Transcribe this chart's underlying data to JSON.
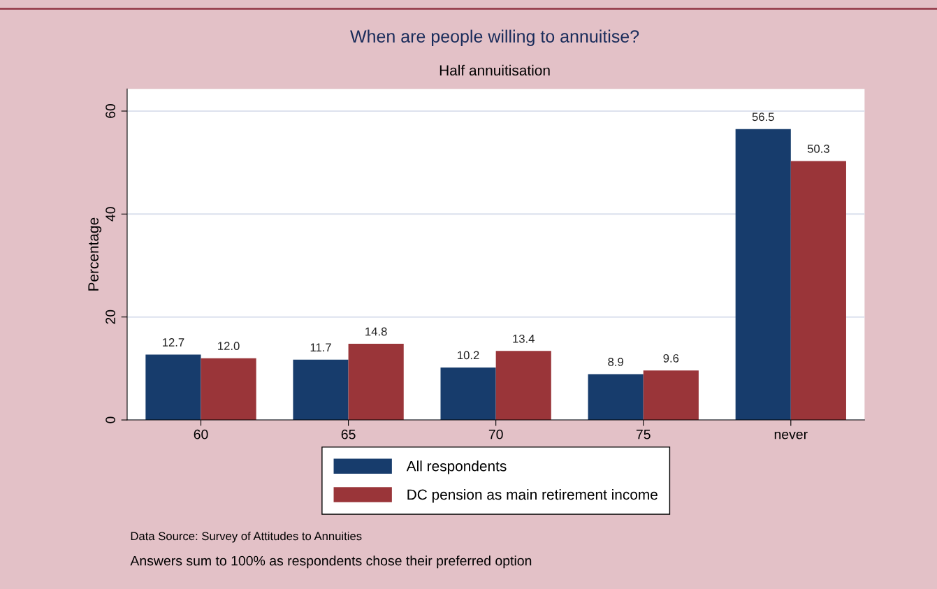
{
  "chart_data": {
    "type": "bar",
    "title": "When are people willing to annuitise?",
    "subtitle": "Half annuitisation",
    "ylabel": "Percentage",
    "categories": [
      "60",
      "65",
      "70",
      "75",
      "never"
    ],
    "series": [
      {
        "name": "All respondents",
        "color": "#173c6c",
        "values": [
          12.7,
          11.7,
          10.2,
          8.9,
          56.5
        ],
        "value_labels": [
          "12.7",
          "11.7",
          "10.2",
          "8.9",
          "56.5"
        ]
      },
      {
        "name": "DC pension as main retirement income",
        "color": "#9a3539",
        "values": [
          12.0,
          14.8,
          13.4,
          9.6,
          50.3
        ],
        "value_labels": [
          "12.0",
          "14.8",
          "13.4",
          "9.6",
          "50.3"
        ]
      }
    ],
    "ylim": [
      0,
      64.3
    ],
    "yticks": [
      0,
      20,
      40,
      60
    ],
    "grid": "y",
    "legend": "bottom",
    "annotations": [
      "Data Source: Survey of Attitudes to Annuities",
      "Answers sum to 100% as respondents chose their preferred option"
    ]
  }
}
